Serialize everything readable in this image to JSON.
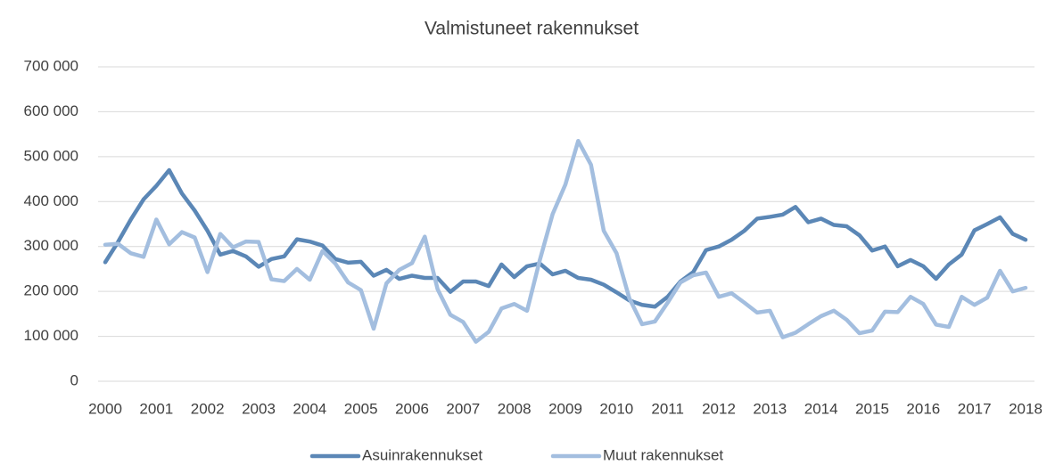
{
  "chart_data": {
    "type": "line",
    "title": "Valmistuneet rakennukset",
    "categories": [
      "2000",
      null,
      null,
      null,
      "2001",
      null,
      null,
      null,
      "2002",
      null,
      null,
      null,
      "2003",
      null,
      null,
      null,
      "2004",
      null,
      null,
      null,
      "2005",
      null,
      null,
      null,
      "2006",
      null,
      null,
      null,
      "2007",
      null,
      null,
      null,
      "2008",
      null,
      null,
      null,
      "2009",
      null,
      null,
      null,
      "2010",
      null,
      null,
      null,
      "2011",
      null,
      null,
      null,
      "2012",
      null,
      null,
      null,
      "2013",
      null,
      null,
      null,
      "2014",
      null,
      null,
      null,
      "2015",
      null,
      null,
      null,
      "2016",
      null,
      null,
      null,
      "2017",
      null,
      null,
      null,
      "2018"
    ],
    "series": [
      {
        "name": "Asuinrakennukset",
        "color": "#5b87b6",
        "values": [
          265000,
          310000,
          360000,
          405000,
          435000,
          470000,
          418000,
          380000,
          335000,
          282000,
          290000,
          278000,
          255000,
          272000,
          278000,
          316000,
          311000,
          302000,
          272000,
          264000,
          266000,
          235000,
          248000,
          228000,
          235000,
          230000,
          230000,
          199000,
          222000,
          222000,
          212000,
          260000,
          232000,
          256000,
          262000,
          238000,
          246000,
          230000,
          226000,
          215000,
          198000,
          180000,
          170000,
          166000,
          188000,
          222000,
          243000,
          292000,
          300000,
          315000,
          335000,
          362000,
          366000,
          371000,
          388000,
          354000,
          362000,
          348000,
          345000,
          325000,
          291000,
          300000,
          256000,
          270000,
          256000,
          228000,
          260000,
          282000,
          336000,
          350000,
          365000,
          328000,
          315000
        ]
      },
      {
        "name": "Muut rakennukset",
        "color": "#a3bedf",
        "values": [
          304000,
          306000,
          285000,
          277000,
          360000,
          305000,
          332000,
          320000,
          243000,
          328000,
          298000,
          311000,
          310000,
          227000,
          223000,
          250000,
          226000,
          290000,
          262000,
          220000,
          203000,
          117000,
          218000,
          248000,
          263000,
          322000,
          205000,
          148000,
          132000,
          88000,
          110000,
          162000,
          172000,
          157000,
          270000,
          372000,
          438000,
          535000,
          482000,
          335000,
          285000,
          185000,
          127000,
          133000,
          175000,
          220000,
          236000,
          242000,
          188000,
          196000,
          175000,
          153000,
          157000,
          98000,
          108000,
          127000,
          145000,
          157000,
          137000,
          107000,
          113000,
          155000,
          154000,
          188000,
          172000,
          126000,
          121000,
          188000,
          170000,
          186000,
          246000,
          200000,
          208000
        ]
      }
    ],
    "ylim": [
      0,
      700000
    ],
    "yticks": [
      0,
      {
        "value": 100000,
        "label": "100 000"
      },
      {
        "value": 200000,
        "label": "200 000"
      },
      {
        "value": 300000,
        "label": "300 000"
      },
      {
        "value": 400000,
        "label": "400 000"
      },
      {
        "value": 500000,
        "label": "500 000"
      },
      {
        "value": 600000,
        "label": "600 000"
      },
      {
        "value": 700000,
        "label": "700 000"
      }
    ],
    "grid": true,
    "legend": "bottom"
  }
}
